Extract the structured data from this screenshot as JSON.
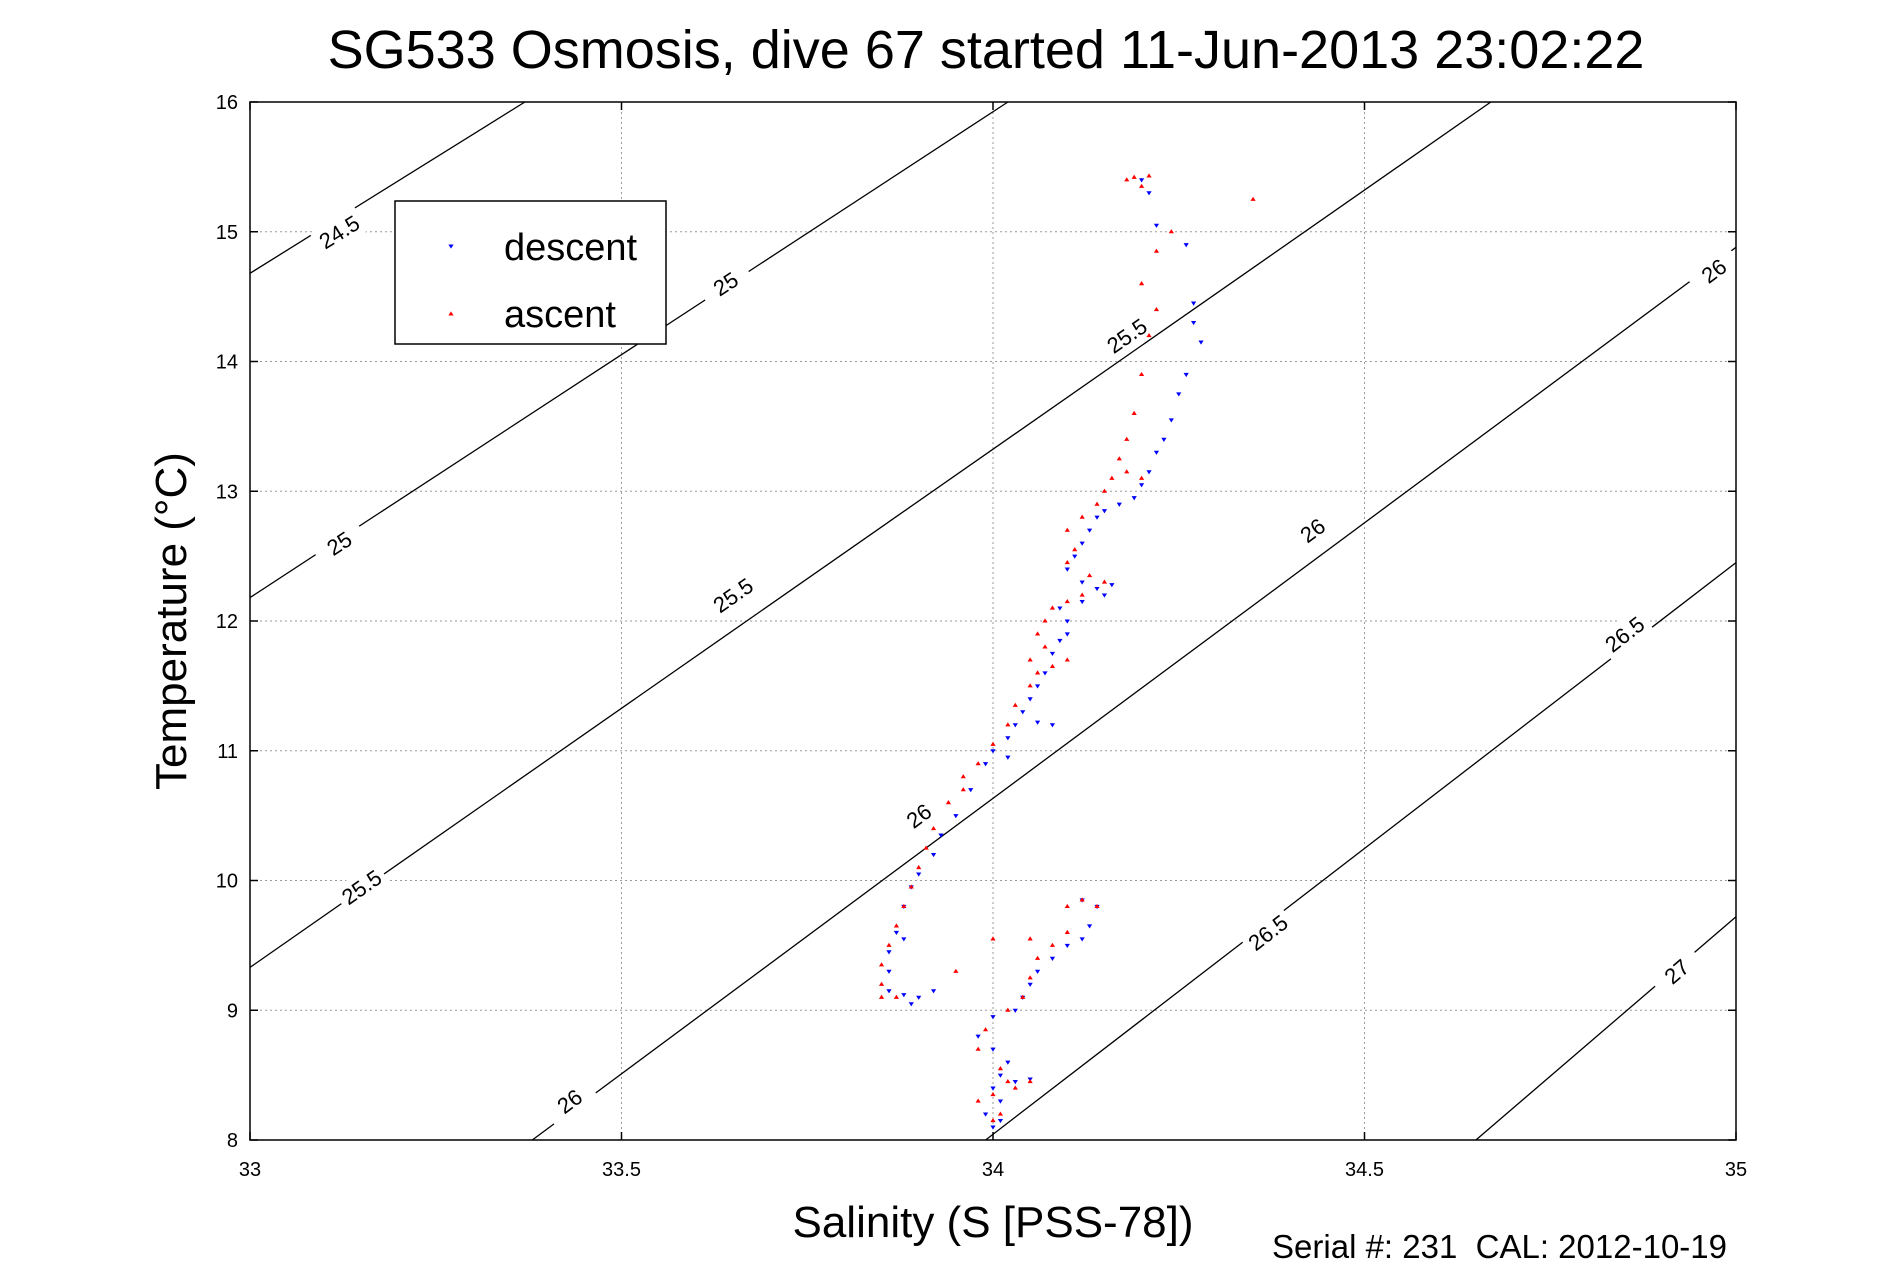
{
  "chart_data": {
    "type": "scatter",
    "title": "SG533 Osmosis, dive 67 started 11-Jun-2013 23:02:22",
    "xlabel": "Salinity (S [PSS-78])",
    "ylabel": "Temperature (°C)",
    "xlim": [
      33,
      35
    ],
    "ylim": [
      8,
      16
    ],
    "x_ticks": [
      "33",
      "33.5",
      "34",
      "34.5",
      "35"
    ],
    "y_ticks": [
      "8",
      "9",
      "10",
      "11",
      "12",
      "13",
      "14",
      "15",
      "16"
    ],
    "grid": true,
    "legend": {
      "position": "top-left",
      "entries": [
        "descent",
        "ascent"
      ]
    },
    "footer": "Serial #: 231  CAL: 2012-10-19",
    "contours": [
      {
        "level": "24.5",
        "points": [
          [
            33,
            14.68
          ],
          [
            33.37,
            16
          ]
        ]
      },
      {
        "level": "25",
        "points": [
          [
            33,
            12.18
          ],
          [
            34.02,
            16
          ]
        ]
      },
      {
        "level": "25.5",
        "points": [
          [
            33,
            9.33
          ],
          [
            34.67,
            16
          ]
        ]
      },
      {
        "level": "26",
        "points": [
          [
            33.38,
            8
          ],
          [
            35,
            14.88
          ]
        ]
      },
      {
        "level": "26.5",
        "points": [
          [
            33.99,
            8
          ],
          [
            35,
            12.45
          ]
        ]
      },
      {
        "level": "27",
        "points": [
          [
            34.65,
            8
          ],
          [
            35,
            9.72
          ]
        ]
      }
    ],
    "contour_labels": [
      {
        "text": "24.5",
        "x": 33.12,
        "y": 15.0
      },
      {
        "text": "25",
        "x": 33.64,
        "y": 14.6
      },
      {
        "text": "25",
        "x": 33.12,
        "y": 12.6
      },
      {
        "text": "25.5",
        "x": 33.65,
        "y": 12.2
      },
      {
        "text": "25.5",
        "x": 34.18,
        "y": 14.2
      },
      {
        "text": "25.5",
        "x": 33.15,
        "y": 9.95
      },
      {
        "text": "26",
        "x": 34.43,
        "y": 12.7
      },
      {
        "text": "26",
        "x": 34.97,
        "y": 14.7
      },
      {
        "text": "26",
        "x": 33.9,
        "y": 10.5
      },
      {
        "text": "26",
        "x": 33.43,
        "y": 8.3
      },
      {
        "text": "26.5",
        "x": 34.37,
        "y": 9.6
      },
      {
        "text": "26.5",
        "x": 34.85,
        "y": 11.9
      },
      {
        "text": "27",
        "x": 34.92,
        "y": 9.3
      }
    ],
    "series": [
      {
        "name": "descent",
        "color": "#0000ff",
        "points": [
          [
            34.2,
            15.4
          ],
          [
            34.21,
            15.3
          ],
          [
            34.22,
            15.05
          ],
          [
            34.26,
            14.9
          ],
          [
            34.27,
            14.45
          ],
          [
            34.27,
            14.3
          ],
          [
            34.28,
            14.15
          ],
          [
            34.26,
            13.9
          ],
          [
            34.25,
            13.75
          ],
          [
            34.24,
            13.55
          ],
          [
            34.23,
            13.4
          ],
          [
            34.22,
            13.3
          ],
          [
            34.21,
            13.15
          ],
          [
            34.2,
            13.05
          ],
          [
            34.19,
            12.95
          ],
          [
            34.17,
            12.9
          ],
          [
            34.15,
            12.85
          ],
          [
            34.14,
            12.8
          ],
          [
            34.13,
            12.7
          ],
          [
            34.12,
            12.6
          ],
          [
            34.11,
            12.5
          ],
          [
            34.1,
            12.4
          ],
          [
            34.12,
            12.3
          ],
          [
            34.14,
            12.25
          ],
          [
            34.16,
            12.28
          ],
          [
            34.15,
            12.2
          ],
          [
            34.12,
            12.15
          ],
          [
            34.09,
            12.1
          ],
          [
            34.1,
            12.0
          ],
          [
            34.1,
            11.9
          ],
          [
            34.09,
            11.85
          ],
          [
            34.08,
            11.75
          ],
          [
            34.07,
            11.6
          ],
          [
            34.06,
            11.5
          ],
          [
            34.05,
            11.4
          ],
          [
            34.04,
            11.3
          ],
          [
            34.03,
            11.2
          ],
          [
            34.06,
            11.22
          ],
          [
            34.08,
            11.2
          ],
          [
            34.02,
            11.1
          ],
          [
            34.0,
            11.0
          ],
          [
            33.99,
            10.9
          ],
          [
            34.02,
            10.95
          ],
          [
            33.97,
            10.7
          ],
          [
            33.95,
            10.5
          ],
          [
            33.93,
            10.35
          ],
          [
            33.92,
            10.2
          ],
          [
            33.9,
            10.05
          ],
          [
            33.89,
            9.95
          ],
          [
            33.88,
            9.8
          ],
          [
            33.87,
            9.6
          ],
          [
            33.86,
            9.45
          ],
          [
            33.86,
            9.3
          ],
          [
            33.86,
            9.15
          ],
          [
            33.88,
            9.12
          ],
          [
            33.9,
            9.1
          ],
          [
            33.92,
            9.15
          ],
          [
            33.89,
            9.05
          ],
          [
            33.88,
            9.55
          ],
          [
            34.12,
            9.85
          ],
          [
            34.14,
            9.8
          ],
          [
            34.13,
            9.65
          ],
          [
            34.12,
            9.55
          ],
          [
            34.1,
            9.5
          ],
          [
            34.08,
            9.4
          ],
          [
            34.06,
            9.3
          ],
          [
            34.05,
            9.2
          ],
          [
            34.04,
            9.1
          ],
          [
            34.03,
            9.0
          ],
          [
            34.0,
            8.95
          ],
          [
            33.98,
            8.8
          ],
          [
            34.0,
            8.7
          ],
          [
            34.02,
            8.6
          ],
          [
            34.01,
            8.5
          ],
          [
            34.0,
            8.4
          ],
          [
            34.03,
            8.45
          ],
          [
            34.05,
            8.47
          ],
          [
            34.01,
            8.3
          ],
          [
            33.99,
            8.2
          ],
          [
            34.01,
            8.15
          ],
          [
            34.0,
            8.1
          ]
        ]
      },
      {
        "name": "ascent",
        "color": "#ff0000",
        "points": [
          [
            34.18,
            15.4
          ],
          [
            34.19,
            15.42
          ],
          [
            34.21,
            15.43
          ],
          [
            34.2,
            15.35
          ],
          [
            34.35,
            15.25
          ],
          [
            34.24,
            15.0
          ],
          [
            34.22,
            14.85
          ],
          [
            34.2,
            14.6
          ],
          [
            34.22,
            14.4
          ],
          [
            34.21,
            14.2
          ],
          [
            34.2,
            13.9
          ],
          [
            34.19,
            13.6
          ],
          [
            34.18,
            13.4
          ],
          [
            34.17,
            13.25
          ],
          [
            34.16,
            13.1
          ],
          [
            34.18,
            13.15
          ],
          [
            34.2,
            13.1
          ],
          [
            34.15,
            13.0
          ],
          [
            34.14,
            12.9
          ],
          [
            34.12,
            12.8
          ],
          [
            34.1,
            12.7
          ],
          [
            34.11,
            12.55
          ],
          [
            34.1,
            12.45
          ],
          [
            34.13,
            12.35
          ],
          [
            34.15,
            12.3
          ],
          [
            34.12,
            12.2
          ],
          [
            34.1,
            12.15
          ],
          [
            34.08,
            12.1
          ],
          [
            34.07,
            12.0
          ],
          [
            34.06,
            11.9
          ],
          [
            34.07,
            11.8
          ],
          [
            34.05,
            11.7
          ],
          [
            34.06,
            11.6
          ],
          [
            34.08,
            11.65
          ],
          [
            34.1,
            11.7
          ],
          [
            34.05,
            11.5
          ],
          [
            34.03,
            11.35
          ],
          [
            34.02,
            11.2
          ],
          [
            34.0,
            11.05
          ],
          [
            33.98,
            10.9
          ],
          [
            33.96,
            10.8
          ],
          [
            33.94,
            10.6
          ],
          [
            33.96,
            10.7
          ],
          [
            33.92,
            10.4
          ],
          [
            33.91,
            10.25
          ],
          [
            33.9,
            10.1
          ],
          [
            33.89,
            9.95
          ],
          [
            33.88,
            9.8
          ],
          [
            33.87,
            9.65
          ],
          [
            33.86,
            9.5
          ],
          [
            33.85,
            9.35
          ],
          [
            33.85,
            9.2
          ],
          [
            33.85,
            9.1
          ],
          [
            33.87,
            9.1
          ],
          [
            33.95,
            9.3
          ],
          [
            34.0,
            9.55
          ],
          [
            34.05,
            9.55
          ],
          [
            34.1,
            9.8
          ],
          [
            34.12,
            9.85
          ],
          [
            34.14,
            9.8
          ],
          [
            34.1,
            9.6
          ],
          [
            34.08,
            9.5
          ],
          [
            34.06,
            9.4
          ],
          [
            34.05,
            9.25
          ],
          [
            34.04,
            9.1
          ],
          [
            34.02,
            9.0
          ],
          [
            33.99,
            8.85
          ],
          [
            33.98,
            8.7
          ],
          [
            34.01,
            8.55
          ],
          [
            34.02,
            8.45
          ],
          [
            34.0,
            8.35
          ],
          [
            33.98,
            8.3
          ],
          [
            34.03,
            8.4
          ],
          [
            34.05,
            8.45
          ],
          [
            34.01,
            8.2
          ],
          [
            34.0,
            8.15
          ]
        ]
      }
    ]
  }
}
